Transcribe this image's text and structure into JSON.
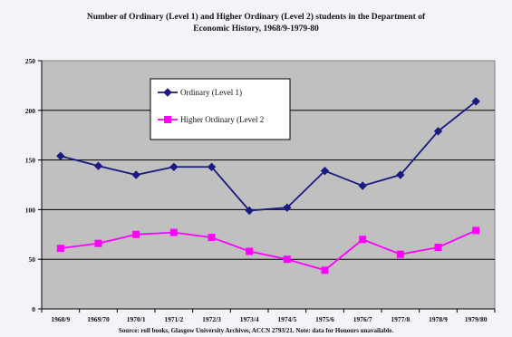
{
  "chart_data": {
    "type": "line",
    "title": "Number of Ordinary (Level 1) and Higher Ordinary (Level 2) students in the Department of Economic History, 1968/9-1979-80",
    "title_lines": [
      "Number of Ordinary (Level 1) and Higher Ordinary (Level 2) students in the Department of",
      "Economic History, 1968/9-1979-80"
    ],
    "source": "Source: roll books, Glasgow University Archives, ACCN 2793/21. Note: data for Honours unavailable.",
    "categories": [
      "1968/9",
      "1969/70",
      "1970/1",
      "1971/2",
      "1972/3",
      "1973/4",
      "1974/5",
      "1975/6",
      "1976/7",
      "1977/8",
      "1978/9",
      "1979/80"
    ],
    "ylim": [
      0,
      250
    ],
    "yticks": [
      "0",
      "50",
      "100",
      "150",
      "200",
      "250"
    ],
    "grid": true,
    "plot_background": "#c0c0c0",
    "legend_position": "upper-left inside plot",
    "series": [
      {
        "name": "Ordinary (Level 1)",
        "color": "#1a1a80",
        "marker": "diamond",
        "values": [
          154,
          144,
          135,
          143,
          143,
          99,
          102,
          139,
          124,
          135,
          179,
          209
        ]
      },
      {
        "name": "Higher Ordinary (Level 2",
        "color": "#ff00ff",
        "marker": "square",
        "values": [
          61,
          66,
          75,
          77,
          72,
          58,
          50,
          39,
          70,
          55,
          62,
          79
        ]
      }
    ]
  }
}
